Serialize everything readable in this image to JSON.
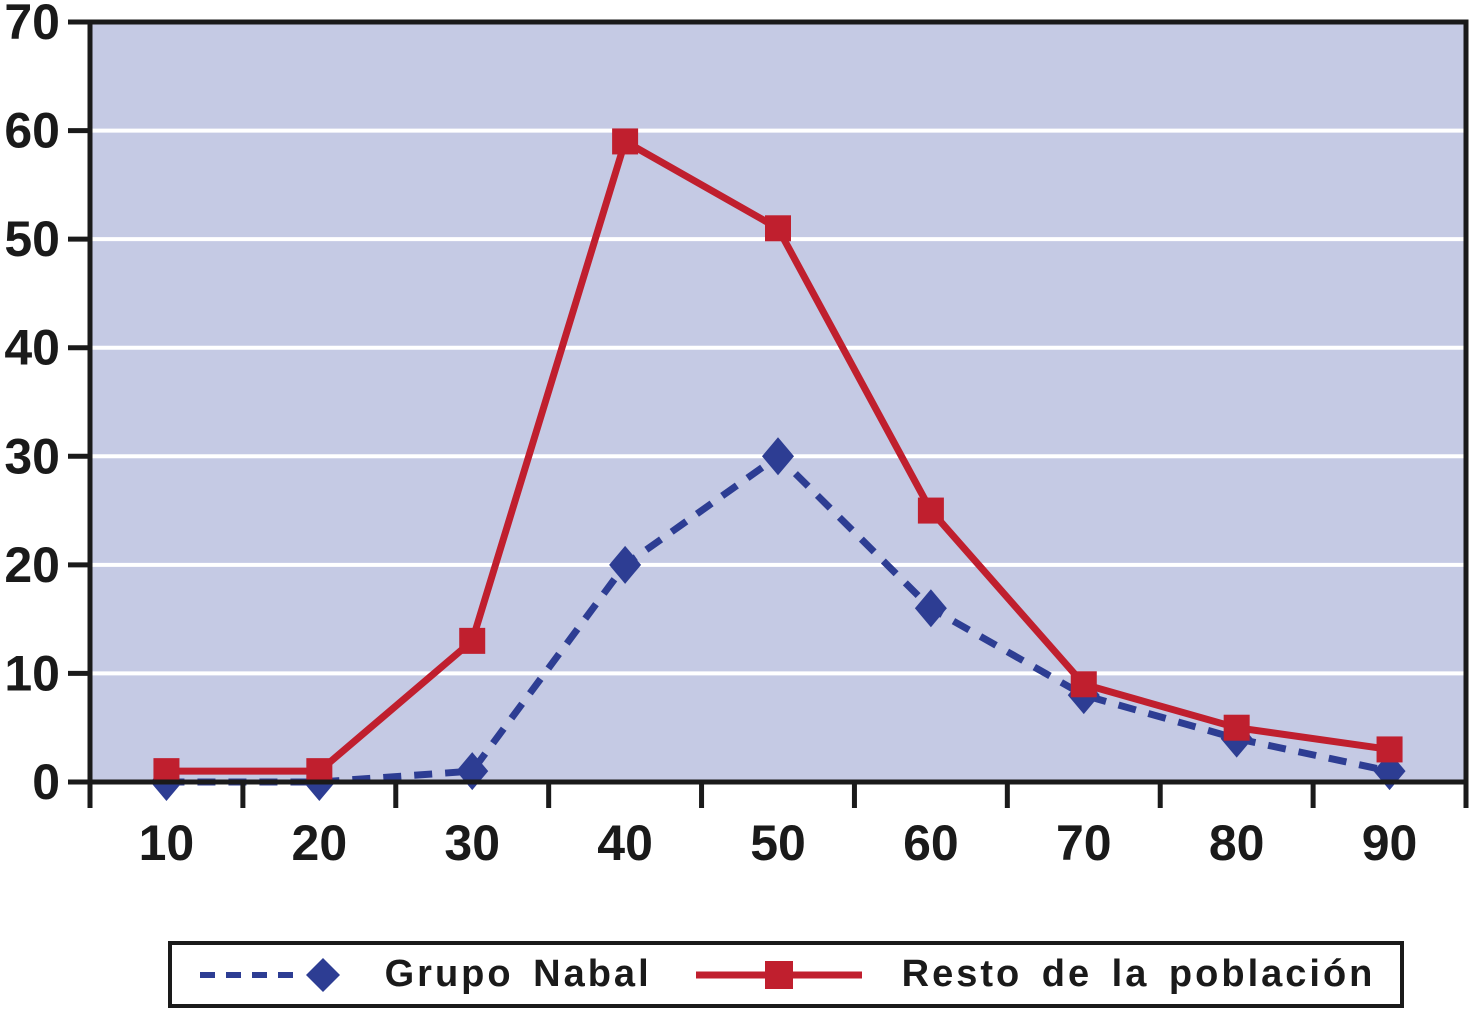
{
  "chart_data": {
    "type": "line",
    "title": "",
    "xlabel": "",
    "ylabel": "",
    "categories": [
      "10",
      "20",
      "30",
      "40",
      "50",
      "60",
      "70",
      "80",
      "90"
    ],
    "y_ticks": [
      0,
      10,
      20,
      30,
      40,
      50,
      60,
      70
    ],
    "ylim": [
      0,
      70
    ],
    "grid": "horizontal",
    "gridline_color": "#ffffff",
    "plot_bg": "#c5cae4",
    "axis_color": "#1a1a1a",
    "legend_position": "bottom",
    "series": [
      {
        "name": "Grupo Nabal",
        "marker": "diamond",
        "line_style": "dashed",
        "color": "#2d3d93",
        "values": [
          0,
          0,
          1,
          20,
          30,
          16,
          8,
          4,
          1
        ]
      },
      {
        "name": "Resto de la población",
        "marker": "square",
        "line_style": "solid",
        "color": "#c01f2e",
        "values": [
          1,
          1,
          13,
          59,
          51,
          25,
          9,
          5,
          3
        ]
      }
    ]
  }
}
